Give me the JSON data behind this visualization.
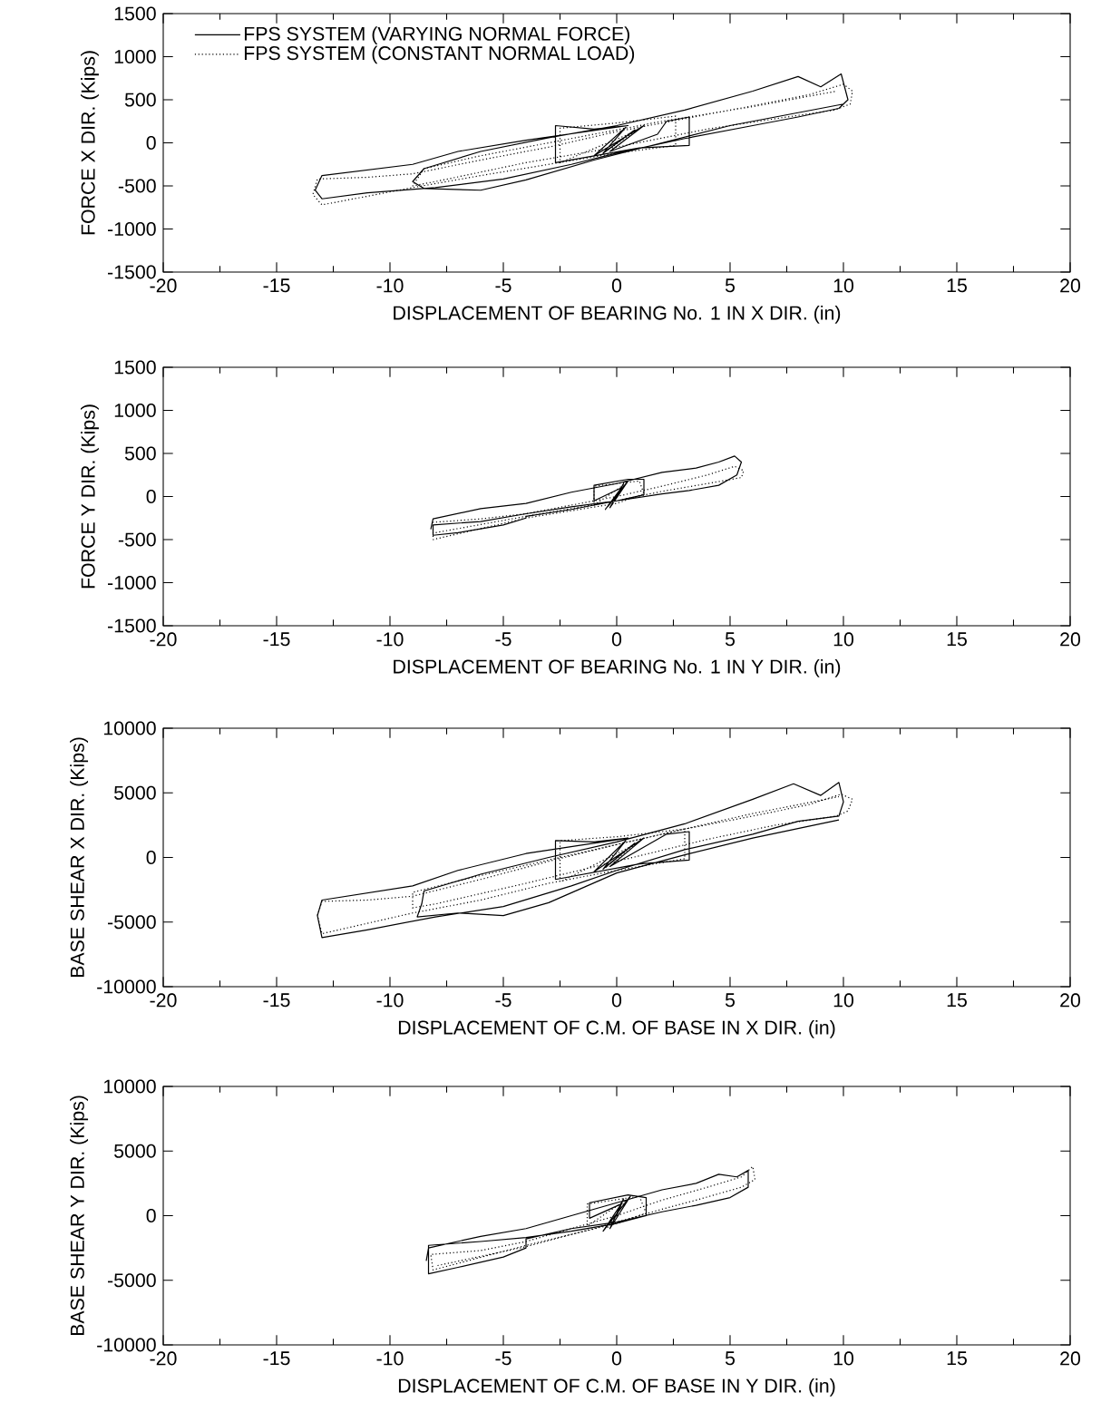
{
  "chart_data": [
    {
      "type": "line",
      "xlabel": "DISPLACEMENT OF BEARING No. 1 IN X DIR. (in)",
      "ylabel": "FORCE X DIR. (Kips)",
      "xlim": [
        -20,
        20
      ],
      "ylim": [
        -1500,
        1500
      ],
      "xticks": [
        -20,
        -15,
        -10,
        -5,
        0,
        5,
        10,
        15,
        20
      ],
      "yticks": [
        -1500,
        -1000,
        -500,
        0,
        500,
        1000,
        1500
      ],
      "legend": "top left",
      "marker": "none",
      "series": [
        {
          "name": "FPS SYSTEM (VARYING NORMAL FORCE)",
          "color": "#000000",
          "line_style": "solid",
          "x": [
            0,
            0.8,
            -0.6,
            0.4,
            -1,
            1.2,
            -0.3,
            1.8,
            2.2,
            3.2,
            3.2,
            1.0,
            -2.7,
            -2.7,
            -1,
            0.5,
            -4,
            -7,
            -9,
            -13,
            -13.3,
            -13,
            -11,
            -8,
            -5,
            -2,
            0,
            3,
            6,
            8,
            9.8,
            10.2,
            9.9,
            9,
            8,
            6,
            3,
            0,
            -3,
            -6,
            -8.5,
            -9,
            -8.5,
            -6,
            -4,
            -1,
            2,
            5,
            8,
            10
          ],
          "values": [
            0,
            150,
            -120,
            180,
            -150,
            200,
            -100,
            100,
            250,
            300,
            -30,
            -60,
            -230,
            200,
            160,
            200,
            30,
            -100,
            -250,
            -380,
            -550,
            -650,
            -580,
            -520,
            -420,
            -250,
            -120,
            50,
            200,
            300,
            400,
            500,
            800,
            650,
            770,
            600,
            380,
            200,
            60,
            -100,
            -300,
            -450,
            -530,
            -550,
            -430,
            -200,
            0,
            200,
            350,
            450
          ]
        },
        {
          "name": "FPS SYSTEM (CONSTANT NORMAL LOAD)",
          "color": "#000000",
          "line_style": "dotted",
          "x": [
            0,
            -0.5,
            0.8,
            -2.5,
            -2.5,
            0,
            2.6,
            2.6,
            0,
            -3,
            -6,
            -9,
            -13,
            -13.4,
            -13.2,
            -11,
            -9,
            -6,
            -3,
            0,
            3,
            6,
            8.5,
            10,
            10.4,
            10.3,
            9.6,
            7,
            4,
            0,
            -4,
            -8,
            -9,
            -8.5,
            -6,
            -2,
            2,
            6,
            9.7
          ],
          "values": [
            0,
            -100,
            130,
            -230,
            170,
            230,
            310,
            -30,
            -120,
            -250,
            -380,
            -520,
            -720,
            -600,
            -420,
            -400,
            -360,
            -200,
            -50,
            130,
            280,
            430,
            560,
            680,
            600,
            450,
            380,
            280,
            160,
            -50,
            -230,
            -450,
            -500,
            -300,
            -150,
            50,
            250,
            420,
            600
          ]
        }
      ]
    },
    {
      "type": "line",
      "xlabel": "DISPLACEMENT OF BEARING No. 1 IN Y DIR. (in)",
      "ylabel": "FORCE Y DIR. (Kips)",
      "xlim": [
        -20,
        20
      ],
      "ylim": [
        -1500,
        1500
      ],
      "xticks": [
        -20,
        -15,
        -10,
        -5,
        0,
        5,
        10,
        15,
        20
      ],
      "yticks": [
        -1500,
        -1000,
        -500,
        0,
        500,
        1000,
        1500
      ],
      "marker": "none",
      "series": [
        {
          "color": "#000000",
          "line_style": "solid",
          "x": [
            0,
            0.3,
            -0.3,
            0.5,
            -0.5,
            0.2,
            -1,
            -1,
            0.5,
            1.2,
            1.2,
            0,
            -2,
            -4,
            -6,
            -8.1,
            -8.1,
            -7,
            -5,
            -4,
            -4,
            -2,
            0,
            2,
            3.2,
            4.5,
            5.3,
            5.5,
            5.2,
            4.5,
            3.5,
            2,
            0,
            -2,
            -4,
            -6,
            -8.1,
            -8.2
          ],
          "values": [
            0,
            150,
            -130,
            180,
            -150,
            100,
            -50,
            130,
            200,
            200,
            20,
            -50,
            -120,
            -200,
            -290,
            -330,
            -450,
            -420,
            -330,
            -250,
            -230,
            -150,
            -50,
            30,
            70,
            130,
            250,
            400,
            470,
            400,
            330,
            280,
            150,
            50,
            -80,
            -140,
            -260,
            -380
          ]
        },
        {
          "color": "#000000",
          "line_style": "dotted",
          "x": [
            0,
            -0.4,
            0.4,
            -1,
            -1,
            1,
            1.2,
            0,
            -4,
            -8.1,
            -8.1,
            -6,
            -4,
            -2,
            0,
            2,
            4,
            5.2,
            5.6,
            5.5,
            4,
            2,
            0,
            -4,
            -8
          ],
          "values": [
            0,
            -120,
            150,
            -100,
            120,
            180,
            30,
            -80,
            -250,
            -500,
            -300,
            -260,
            -200,
            -100,
            0,
            120,
            250,
            350,
            300,
            220,
            150,
            60,
            -50,
            -230,
            -420
          ]
        }
      ]
    },
    {
      "type": "line",
      "xlabel": "DISPLACEMENT OF C.M. OF BASE IN X DIR. (in)",
      "ylabel": "BASE SHEAR X DIR. (Kips)",
      "xlim": [
        -20,
        20
      ],
      "ylim": [
        -10000,
        10000
      ],
      "xticks": [
        -20,
        -15,
        -10,
        -5,
        0,
        5,
        10,
        15,
        20
      ],
      "yticks": [
        -10000,
        -5000,
        0,
        5000,
        10000
      ],
      "marker": "none",
      "series": [
        {
          "color": "#000000",
          "line_style": "solid",
          "x": [
            0,
            0.8,
            -0.6,
            0.4,
            -1,
            1.2,
            -0.3,
            2.2,
            3.2,
            3.2,
            1,
            -2.7,
            -2.7,
            -1,
            0.5,
            -4,
            -7,
            -9,
            -13,
            -13.2,
            -13,
            -11,
            -8,
            -5,
            -2,
            0,
            3,
            6,
            8,
            9.8,
            10,
            9.8,
            9,
            7.8,
            6,
            3,
            0,
            -3,
            -6,
            -8.5,
            -8.6,
            -8.8,
            -7,
            -5,
            -3,
            0,
            3,
            6,
            9.8
          ],
          "values": [
            0,
            1100,
            -900,
            1300,
            -1100,
            1500,
            -700,
            1800,
            2000,
            -200,
            -500,
            -1700,
            1300,
            1200,
            1500,
            300,
            -1000,
            -2200,
            -3300,
            -4500,
            -6200,
            -5600,
            -4600,
            -3800,
            -2200,
            -1000,
            600,
            1800,
            2800,
            3200,
            4300,
            5800,
            4800,
            5700,
            4500,
            2600,
            1200,
            0,
            -1300,
            -2600,
            -3600,
            -4600,
            -4300,
            -4500,
            -3500,
            -1200,
            200,
            1500,
            2900
          ]
        },
        {
          "color": "#000000",
          "line_style": "dotted",
          "x": [
            0,
            -0.5,
            0.8,
            -2.5,
            -2.5,
            0,
            3,
            3,
            0,
            -3,
            -6,
            -9,
            -13,
            -13.2,
            -13,
            -11,
            -9,
            -6,
            -3,
            0,
            3,
            6,
            8.5,
            9.9,
            10.4,
            10.2,
            9.7,
            7,
            4,
            0,
            -4,
            -8,
            -9,
            -9,
            -6,
            -2,
            2,
            6,
            9.8
          ],
          "values": [
            0,
            -800,
            1000,
            -1900,
            1300,
            1600,
            2200,
            -100,
            -1000,
            -2000,
            -3300,
            -4300,
            -5900,
            -4500,
            -3400,
            -3300,
            -3000,
            -1700,
            -300,
            1000,
            2200,
            3200,
            4100,
            4900,
            4500,
            3600,
            3200,
            2500,
            1400,
            -300,
            -2000,
            -3600,
            -3900,
            -2700,
            -1400,
            200,
            1800,
            3400,
            4700
          ]
        }
      ]
    },
    {
      "type": "line",
      "xlabel": "DISPLACEMENT OF C.M. OF BASE IN Y DIR. (in)",
      "ylabel": "BASE SHEAR Y DIR. (Kips)",
      "xlim": [
        -20,
        20
      ],
      "ylim": [
        -10000,
        10000
      ],
      "xticks": [
        -20,
        -15,
        -10,
        -5,
        0,
        5,
        10,
        15,
        20
      ],
      "yticks": [
        -10000,
        -5000,
        0,
        5000,
        10000
      ],
      "marker": "none",
      "series": [
        {
          "color": "#000000",
          "line_style": "solid",
          "x": [
            0,
            0.3,
            -0.3,
            0.6,
            -0.6,
            0.2,
            -1.2,
            -1.2,
            0.5,
            1.3,
            1.3,
            0,
            -2,
            -4,
            -6,
            -8.3,
            -8.3,
            -7,
            -5,
            -4,
            -4,
            -2,
            0,
            2,
            3.5,
            5,
            5.8,
            5.8,
            5.3,
            4.5,
            3.5,
            2,
            0,
            -2,
            -4,
            -6,
            -8.3,
            -8.4
          ],
          "values": [
            0,
            1300,
            -1000,
            1500,
            -1200,
            900,
            -200,
            1000,
            1600,
            1400,
            0,
            -600,
            -1200,
            -1700,
            -2000,
            -2300,
            -4500,
            -4000,
            -3200,
            -2500,
            -1800,
            -1000,
            -500,
            300,
            800,
            1400,
            2200,
            3500,
            3000,
            3200,
            2500,
            2000,
            1000,
            0,
            -1000,
            -1600,
            -2500,
            -3500
          ]
        },
        {
          "color": "#000000",
          "line_style": "dotted",
          "x": [
            0,
            -0.4,
            0.4,
            -1.3,
            -1.3,
            1,
            1.3,
            0,
            -4,
            -8.1,
            -8.2,
            -6,
            -4,
            -2,
            0,
            2,
            4,
            5.5,
            6,
            6.1,
            5.5,
            3.5,
            2,
            0,
            -4,
            -8
          ],
          "values": [
            0,
            -900,
            1200,
            -800,
            900,
            1500,
            200,
            -600,
            -2300,
            -4200,
            -3000,
            -2700,
            -2000,
            -1000,
            0,
            1200,
            2200,
            3000,
            3800,
            2800,
            2200,
            1200,
            500,
            -500,
            -2400,
            -3900
          ]
        }
      ]
    }
  ]
}
